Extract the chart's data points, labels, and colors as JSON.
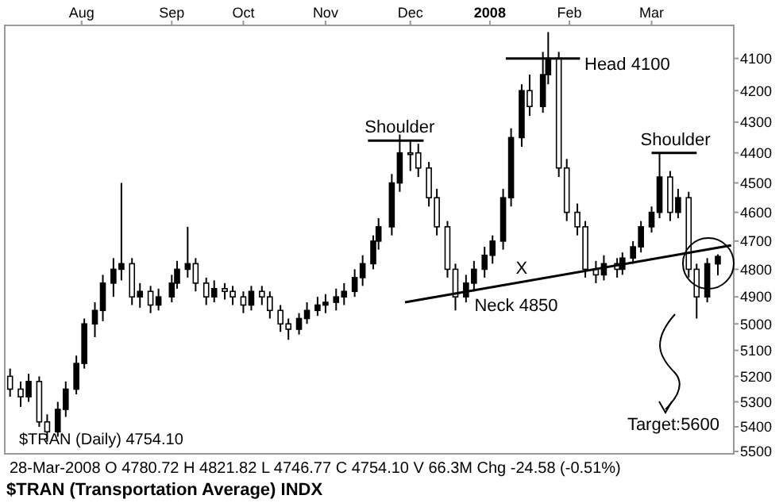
{
  "chart_data": {
    "type": "candlestick",
    "title": "$TRAN (Transportation Average) INDX",
    "subtitle": "28-Mar-2008   O 4780.72  H 4821.82  L 4746.77  C 4754.10  V 66.3M  Chg -24.58 (-0.51%)",
    "color": "#000000",
    "x": [
      "2007-07-05",
      "2007-07-09",
      "2007-07-12",
      "2007-07-16",
      "2007-07-19",
      "2007-07-23",
      "2007-07-26",
      "2007-07-30",
      "2007-08-02",
      "2007-08-06",
      "2007-08-09",
      "2007-08-13",
      "2007-08-16",
      "2007-08-20",
      "2007-08-23",
      "2007-08-27",
      "2007-08-30",
      "2007-09-04",
      "2007-09-06",
      "2007-09-10",
      "2007-09-13",
      "2007-09-17",
      "2007-09-20",
      "2007-09-24",
      "2007-09-27",
      "2007-10-01",
      "2007-10-04",
      "2007-10-08",
      "2007-10-11",
      "2007-10-15",
      "2007-10-18",
      "2007-10-22",
      "2007-10-25",
      "2007-10-29",
      "2007-11-01",
      "2007-11-05",
      "2007-11-08",
      "2007-11-12",
      "2007-11-15",
      "2007-11-19",
      "2007-11-21",
      "2007-11-26",
      "2007-11-29",
      "2007-12-03",
      "2007-12-06",
      "2007-12-10",
      "2007-12-13",
      "2007-12-17",
      "2007-12-20",
      "2007-12-24",
      "2007-12-27",
      "2007-12-31",
      "2008-01-03",
      "2008-01-07",
      "2008-01-10",
      "2008-01-14",
      "2008-01-17",
      "2008-01-22",
      "2008-01-24",
      "2008-01-28",
      "2008-01-31",
      "2008-02-04",
      "2008-02-07",
      "2008-02-11",
      "2008-02-14",
      "2008-02-19",
      "2008-02-21",
      "2008-02-25",
      "2008-02-28",
      "2008-03-03",
      "2008-03-06",
      "2008-03-10",
      "2008-03-13",
      "2008-03-17",
      "2008-03-20",
      "2008-03-24",
      "2008-03-28"
    ],
    "ohlc": [
      [
        5200,
        5280,
        5170,
        5250
      ],
      [
        5250,
        5320,
        5220,
        5280
      ],
      [
        5280,
        5300,
        5190,
        5220
      ],
      [
        5220,
        5400,
        5200,
        5380
      ],
      [
        5380,
        5460,
        5350,
        5420
      ],
      [
        5420,
        5440,
        5300,
        5330
      ],
      [
        5330,
        5360,
        5220,
        5250
      ],
      [
        5250,
        5270,
        5120,
        5150
      ],
      [
        5150,
        5170,
        4980,
        5000
      ],
      [
        5000,
        5050,
        4920,
        4950
      ],
      [
        4950,
        4990,
        4820,
        4850
      ],
      [
        4850,
        4900,
        4760,
        4800
      ],
      [
        4800,
        4840,
        4500,
        4780
      ],
      [
        4780,
        4930,
        4760,
        4900
      ],
      [
        4900,
        4940,
        4850,
        4880
      ],
      [
        4880,
        4960,
        4860,
        4930
      ],
      [
        4930,
        4950,
        4870,
        4900
      ],
      [
        4900,
        4920,
        4820,
        4850
      ],
      [
        4850,
        4870,
        4770,
        4800
      ],
      [
        4800,
        4830,
        4650,
        4780
      ],
      [
        4780,
        4880,
        4760,
        4850
      ],
      [
        4850,
        4930,
        4830,
        4900
      ],
      [
        4900,
        4920,
        4840,
        4870
      ],
      [
        4870,
        4910,
        4850,
        4880
      ],
      [
        4880,
        4930,
        4860,
        4900
      ],
      [
        4900,
        4960,
        4880,
        4930
      ],
      [
        4930,
        4950,
        4860,
        4880
      ],
      [
        4880,
        4930,
        4860,
        4900
      ],
      [
        4900,
        4980,
        4880,
        4950
      ],
      [
        4950,
        5030,
        4930,
        5000
      ],
      [
        5000,
        5060,
        4980,
        5020
      ],
      [
        5020,
        5040,
        4960,
        4980
      ],
      [
        4980,
        5000,
        4920,
        4950
      ],
      [
        4950,
        4970,
        4900,
        4930
      ],
      [
        4930,
        4960,
        4890,
        4920
      ],
      [
        4920,
        4950,
        4870,
        4900
      ],
      [
        4900,
        4930,
        4850,
        4880
      ],
      [
        4880,
        4900,
        4800,
        4830
      ],
      [
        4830,
        4860,
        4750,
        4780
      ],
      [
        4780,
        4800,
        4680,
        4700
      ],
      [
        4700,
        4730,
        4620,
        4650
      ],
      [
        4650,
        4680,
        4470,
        4500
      ],
      [
        4500,
        4530,
        4340,
        4400
      ],
      [
        4400,
        4460,
        4360,
        4400
      ],
      [
        4400,
        4480,
        4370,
        4450
      ],
      [
        4450,
        4580,
        4430,
        4550
      ],
      [
        4550,
        4680,
        4520,
        4650
      ],
      [
        4650,
        4830,
        4630,
        4800
      ],
      [
        4800,
        4950,
        4780,
        4900
      ],
      [
        4900,
        4920,
        4820,
        4850
      ],
      [
        4850,
        4880,
        4770,
        4800
      ],
      [
        4800,
        4830,
        4720,
        4750
      ],
      [
        4750,
        4780,
        4680,
        4700
      ],
      [
        4700,
        4730,
        4520,
        4550
      ],
      [
        4550,
        4580,
        4320,
        4350
      ],
      [
        4350,
        4380,
        4180,
        4200
      ],
      [
        4200,
        4280,
        4150,
        4250
      ],
      [
        4250,
        4270,
        4080,
        4150
      ],
      [
        4150,
        4180,
        4020,
        4100
      ],
      [
        4100,
        4480,
        4080,
        4450
      ],
      [
        4450,
        4630,
        4420,
        4600
      ],
      [
        4600,
        4680,
        4570,
        4650
      ],
      [
        4650,
        4830,
        4630,
        4800
      ],
      [
        4800,
        4850,
        4770,
        4820
      ],
      [
        4820,
        4840,
        4750,
        4780
      ],
      [
        4780,
        4830,
        4760,
        4800
      ],
      [
        4800,
        4820,
        4740,
        4760
      ],
      [
        4760,
        4780,
        4700,
        4720
      ],
      [
        4720,
        4740,
        4630,
        4650
      ],
      [
        4650,
        4670,
        4580,
        4600
      ],
      [
        4600,
        4620,
        4400,
        4480
      ],
      [
        4480,
        4630,
        4460,
        4600
      ],
      [
        4600,
        4620,
        4520,
        4550
      ],
      [
        4550,
        4830,
        4530,
        4800
      ],
      [
        4800,
        4980,
        4780,
        4900
      ],
      [
        4900,
        4920,
        4760,
        4780
      ],
      [
        4780.72,
        4821.82,
        4746.77,
        4754.1
      ]
    ],
    "series": [
      {
        "type": "line",
        "color": "#000000",
        "x": [
          "2007-12-01",
          "2008-04-02"
        ],
        "values": [
          4920,
          4715
        ]
      },
      {
        "type": "line",
        "color": "#000000",
        "x": [
          "2007-11-17",
          "2007-12-08"
        ],
        "values": [
          4360,
          4360
        ]
      },
      {
        "type": "line",
        "color": "#000000",
        "x": [
          "2008-01-08",
          "2008-02-05"
        ],
        "values": [
          4100,
          4100
        ]
      },
      {
        "type": "line",
        "color": "#000000",
        "x": [
          "2008-03-03",
          "2008-03-20"
        ],
        "values": [
          4400,
          4400
        ]
      }
    ],
    "xlim": [
      "2007-07-03",
      "2008-04-03"
    ],
    "xticks": [
      {
        "value": "2007-08-01",
        "label": "Aug"
      },
      {
        "value": "2007-09-04",
        "label": "Sep"
      },
      {
        "value": "2007-10-01",
        "label": "Oct"
      },
      {
        "value": "2007-11-01",
        "label": "Nov"
      },
      {
        "value": "2007-12-03",
        "label": "Dec"
      },
      {
        "value": "2008-01-02",
        "label": "2008"
      },
      {
        "value": "2008-02-01",
        "label": "Feb"
      },
      {
        "value": "2008-03-03",
        "label": "Mar"
      }
    ],
    "ylim": [
      5510,
      4000
    ],
    "log": true,
    "yticks": [
      4100,
      4200,
      4300,
      4400,
      4500,
      4600,
      4700,
      4800,
      4900,
      5000,
      5100,
      5200,
      5300,
      5400,
      5500
    ],
    "grid": false,
    "annotations": [
      {
        "text": "Shoulder",
        "x": "2007-11-29",
        "y": 4360
      },
      "Head 4100",
      {
        "text": "Shoulder",
        "x": "2008-03-12",
        "y": 4400
      },
      {
        "text": "X",
        "x": "2008-01-14",
        "y": 4845
      },
      "Neck 4850",
      "$TRAN (Daily) 4754.10",
      "Target:5600"
    ]
  }
}
